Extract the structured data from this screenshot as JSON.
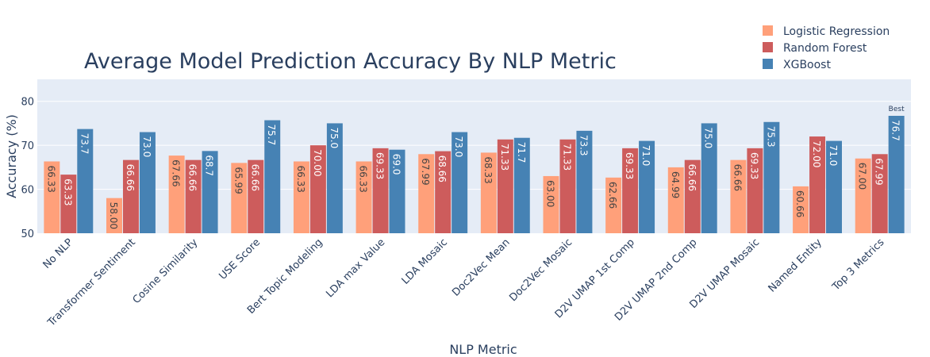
{
  "chart_data": {
    "type": "bar",
    "title": "Average Model Prediction Accuracy By NLP Metric",
    "xlabel": "NLP Metric",
    "ylabel": "Accuracy (%)",
    "ylim": [
      50,
      85
    ],
    "yticks": [
      50,
      60,
      70,
      80
    ],
    "grid": true,
    "legend_position": "top-right",
    "categories": [
      "No NLP",
      "Transformer Sentiment",
      "Cosine Similarity",
      "USE Score",
      "Bert Topic Modeling",
      "LDA max Value",
      "LDA Mosaic",
      "Doc2Vec Mean",
      "Doc2Vec Mosaic",
      "D2V UMAP 1st Comp",
      "D2V UMAP 2nd Comp",
      "D2V UMAP Mosaic",
      "Named Entity",
      "Top 3 Metrics"
    ],
    "series": [
      {
        "name": "Logistic Regression",
        "color": "#FFA07A",
        "label_color": "#444444",
        "values": [
          66.33,
          58.0,
          67.66,
          65.99,
          66.33,
          66.33,
          67.99,
          68.33,
          63.0,
          62.66,
          64.99,
          66.66,
          60.66,
          67.0
        ],
        "labels": [
          "66.33",
          "58.00",
          "67.66",
          "65.99",
          "66.33",
          "66.33",
          "67.99",
          "68.33",
          "63.00",
          "62.66",
          "64.99",
          "66.66",
          "60.66",
          "67.00"
        ]
      },
      {
        "name": "Random Forest",
        "color": "#CD5C5C",
        "label_color": "#ffffff",
        "values": [
          63.33,
          66.66,
          66.66,
          66.66,
          70.0,
          69.33,
          68.66,
          71.33,
          71.33,
          69.33,
          66.66,
          69.33,
          72.0,
          67.99
        ],
        "labels": [
          "63.33",
          "66.66",
          "66.66",
          "66.66",
          "70.00",
          "69.33",
          "68.66",
          "71.33",
          "71.33",
          "69.33",
          "66.66",
          "69.33",
          "72.00",
          "67.99"
        ]
      },
      {
        "name": "XGBoost",
        "color": "#4682B4",
        "label_color": "#ffffff",
        "values": [
          73.7,
          73.0,
          68.7,
          75.7,
          75.0,
          69.0,
          73.0,
          71.7,
          73.3,
          71.0,
          75.0,
          75.3,
          71.0,
          76.7
        ],
        "labels": [
          "73.7",
          "73.0",
          "68.7",
          "75.7",
          "75.0",
          "69.0",
          "73.0",
          "71.7",
          "73.3",
          "71.0",
          "75.0",
          "75.3",
          "71.0",
          "76.7"
        ]
      }
    ],
    "annotations": [
      {
        "text": "Best",
        "category": "Top 3 Metrics",
        "series": "XGBoost"
      }
    ]
  }
}
